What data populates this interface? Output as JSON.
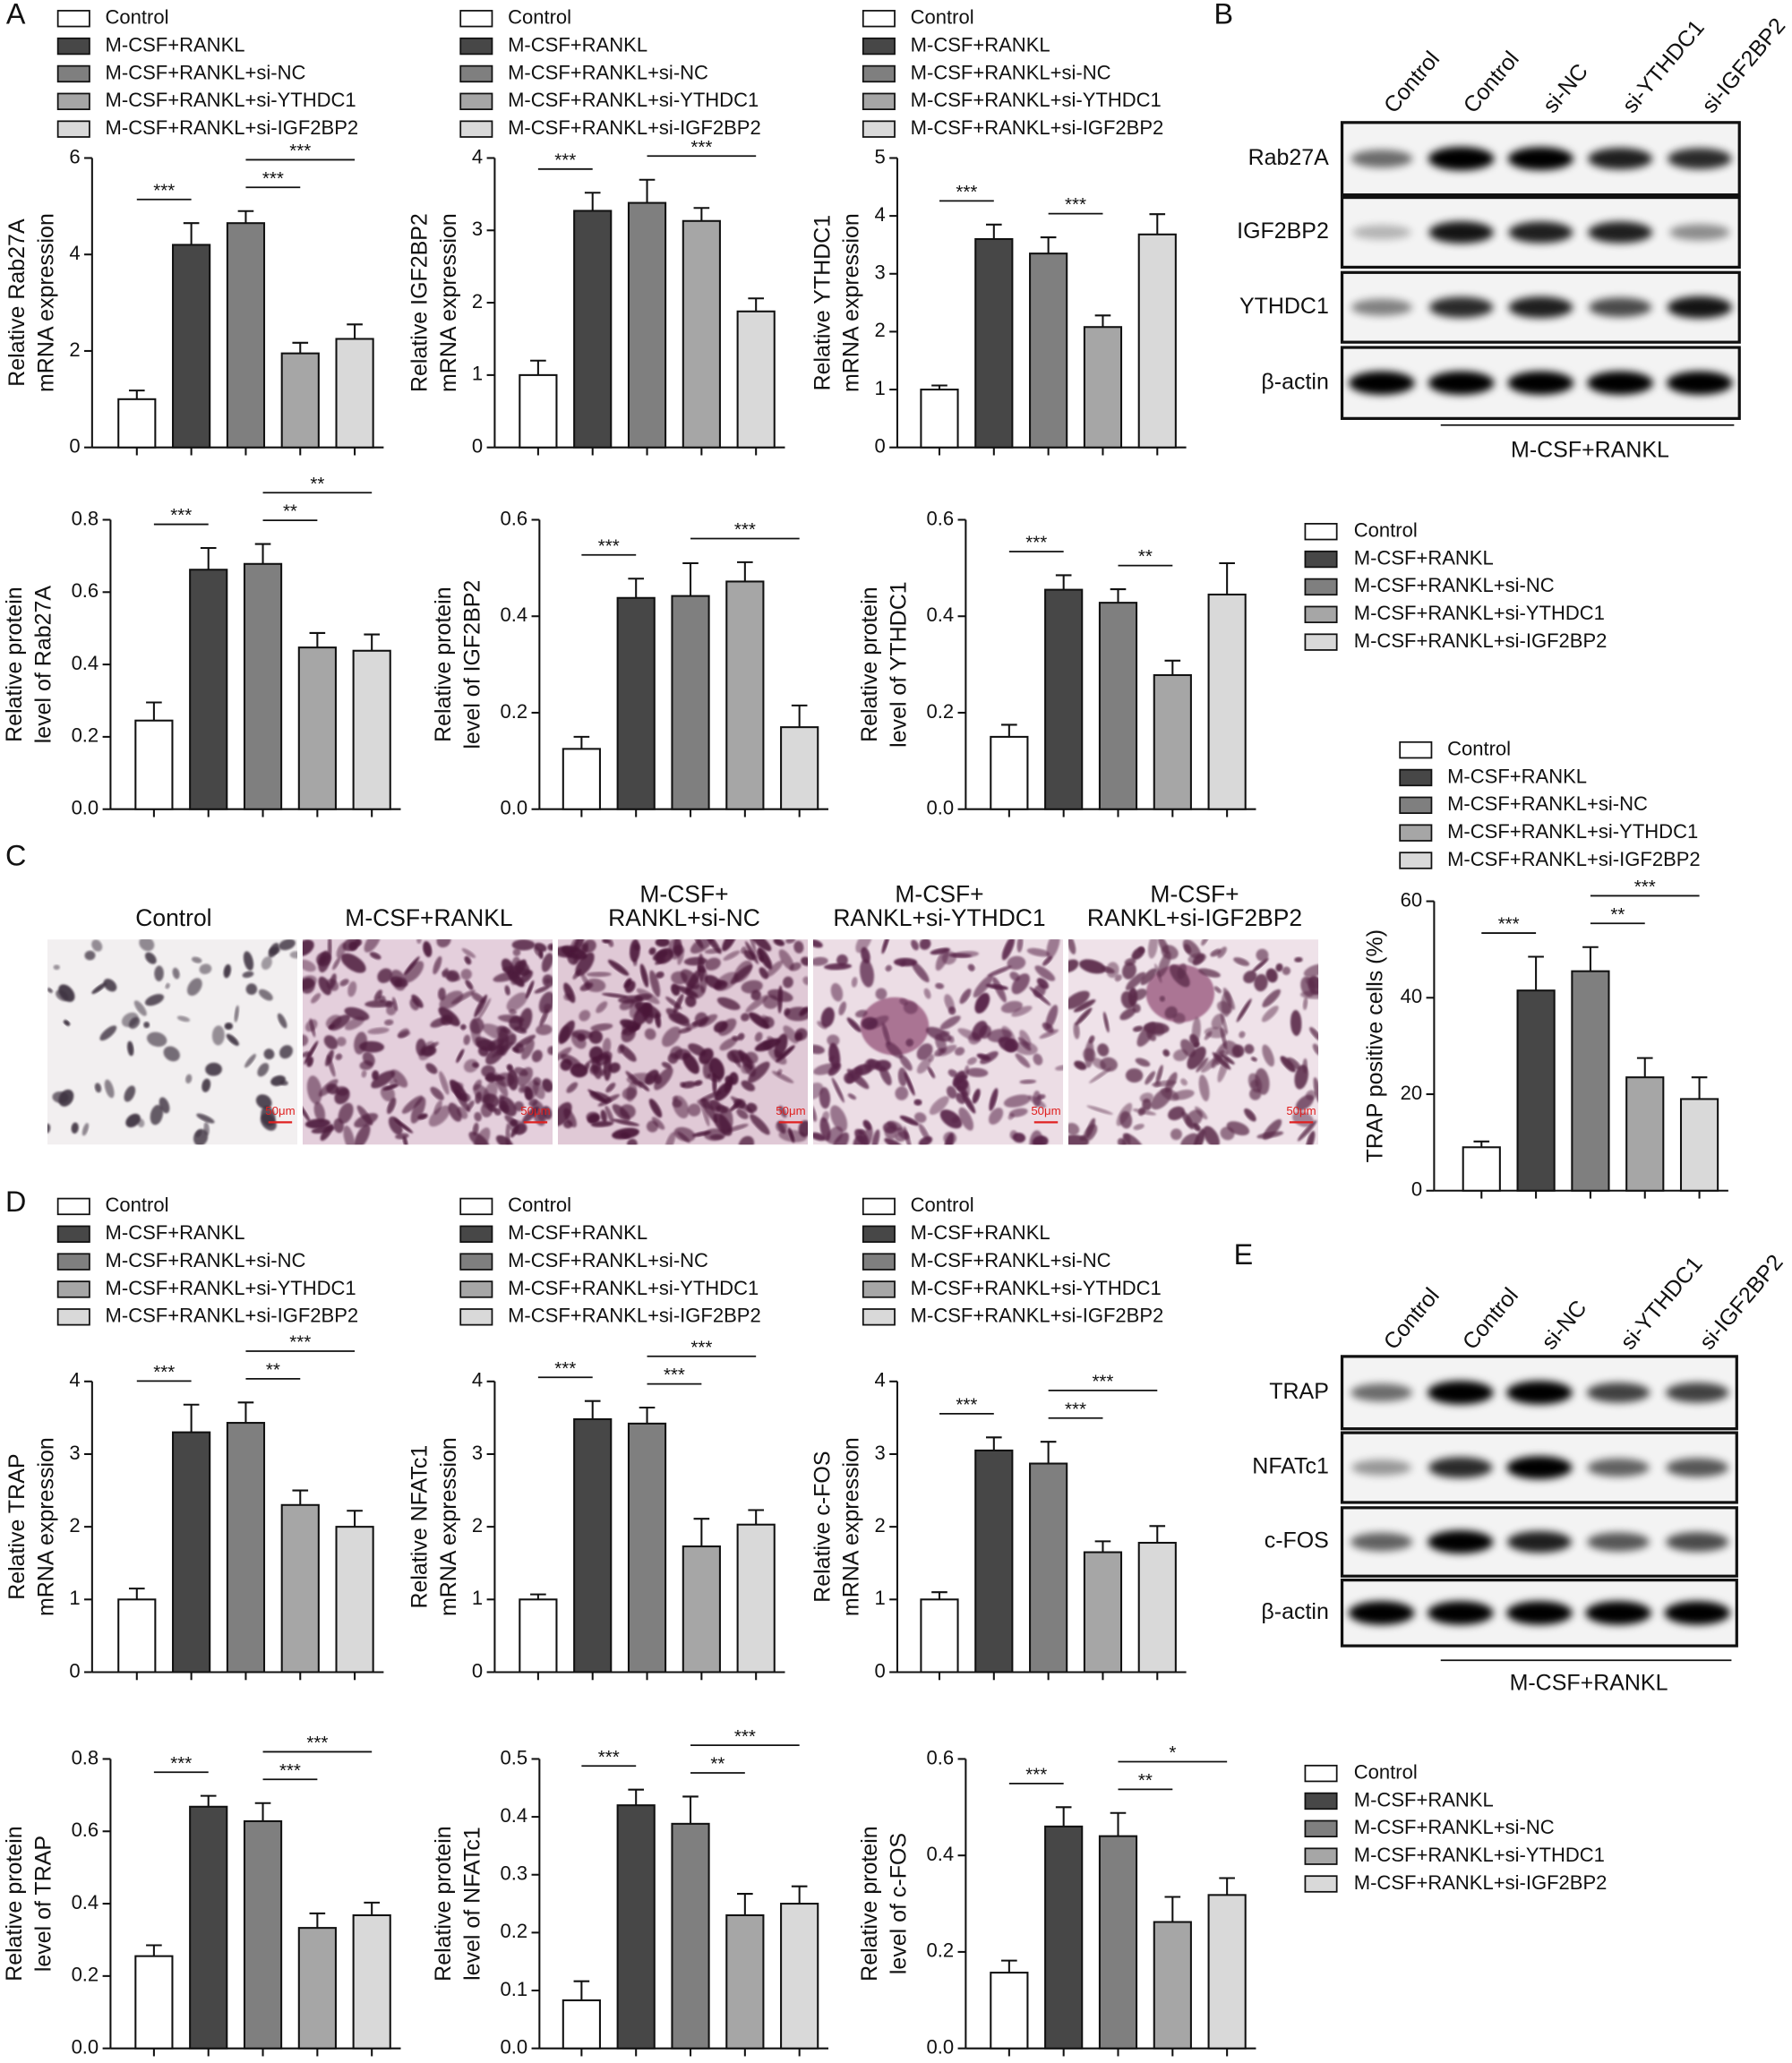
{
  "panel_labels": [
    "A",
    "B",
    "C",
    "D",
    "E"
  ],
  "chart_data": [
    {
      "type": "bar",
      "ylabel": [
        "Relative Rab27A",
        "mRNA expression"
      ],
      "categories": [
        "Control",
        "M-CSF+RANKL",
        "M-CSF+RANKL+si-NC",
        "M-CSF+RANKL+si-YTHDC1",
        "M-CSF+RANKL+si-IGF2BP2"
      ],
      "colors": [
        "#ffffff",
        "#474747",
        "#7f7f7f",
        "#a6a6a6",
        "#d9d9d9"
      ],
      "values": [
        1.0,
        4.2,
        4.65,
        1.95,
        2.25
      ],
      "errors": [
        0.18,
        0.45,
        0.25,
        0.22,
        0.3
      ],
      "ylim": [
        0,
        6
      ],
      "yticks": [
        0,
        2,
        4,
        6
      ],
      "legend": "top",
      "significance": [
        {
          "from": 0,
          "to": 1,
          "label": "***"
        },
        {
          "from": 2,
          "to": 3,
          "label": "***"
        },
        {
          "from": 2,
          "to": 4,
          "label": "***"
        }
      ]
    },
    {
      "type": "bar",
      "ylabel": [
        "Relative IGF2BP2",
        "mRNA expression"
      ],
      "categories": [
        "Control",
        "M-CSF+RANKL",
        "M-CSF+RANKL+si-NC",
        "M-CSF+RANKL+si-YTHDC1",
        "M-CSF+RANKL+si-IGF2BP2"
      ],
      "colors": [
        "#ffffff",
        "#474747",
        "#7f7f7f",
        "#a6a6a6",
        "#d9d9d9"
      ],
      "values": [
        1.0,
        3.27,
        3.38,
        3.13,
        1.88
      ],
      "errors": [
        0.2,
        0.25,
        0.32,
        0.18,
        0.18
      ],
      "ylim": [
        0,
        4
      ],
      "yticks": [
        0,
        1,
        2,
        3,
        4
      ],
      "legend": "top",
      "significance": [
        {
          "from": 0,
          "to": 1,
          "label": "***"
        },
        {
          "from": 2,
          "to": 4,
          "label": "***"
        }
      ]
    },
    {
      "type": "bar",
      "ylabel": [
        "Relative YTHDC1",
        "mRNA expression"
      ],
      "categories": [
        "Control",
        "M-CSF+RANKL",
        "M-CSF+RANKL+si-NC",
        "M-CSF+RANKL+si-YTHDC1",
        "M-CSF+RANKL+si-IGF2BP2"
      ],
      "colors": [
        "#ffffff",
        "#474747",
        "#7f7f7f",
        "#a6a6a6",
        "#d9d9d9"
      ],
      "values": [
        1.0,
        3.6,
        3.35,
        2.08,
        3.68
      ],
      "errors": [
        0.07,
        0.25,
        0.28,
        0.2,
        0.35
      ],
      "ylim": [
        0,
        5
      ],
      "yticks": [
        0,
        1,
        2,
        3,
        4,
        5
      ],
      "legend": "top",
      "significance": [
        {
          "from": 0,
          "to": 1,
          "label": "***"
        },
        {
          "from": 2,
          "to": 3,
          "label": "***"
        }
      ]
    },
    {
      "type": "bar",
      "ylabel": [
        "Relative protein",
        "level of Rab27A"
      ],
      "categories": [
        "Control",
        "M-CSF+RANKL",
        "M-CSF+RANKL+si-NC",
        "M-CSF+RANKL+si-YTHDC1",
        "M-CSF+RANKL+si-IGF2BP2"
      ],
      "colors": [
        "#ffffff",
        "#474747",
        "#7f7f7f",
        "#a6a6a6",
        "#d9d9d9"
      ],
      "values": [
        0.245,
        0.662,
        0.678,
        0.447,
        0.438
      ],
      "errors": [
        0.05,
        0.06,
        0.055,
        0.04,
        0.045
      ],
      "ylim": [
        0,
        0.8
      ],
      "yticks": [
        {
          "value": 0,
          "label": "0.0"
        },
        0.2,
        0.4,
        0.6,
        0.8
      ],
      "legend": false,
      "significance": [
        {
          "from": 0,
          "to": 1,
          "label": "***"
        },
        {
          "from": 2,
          "to": 3,
          "label": "**"
        },
        {
          "from": 2,
          "to": 4,
          "label": "**"
        }
      ]
    },
    {
      "type": "bar",
      "ylabel": [
        "Relative protein",
        "level of IGF2BP2"
      ],
      "categories": [
        "Control",
        "M-CSF+RANKL",
        "M-CSF+RANKL+si-NC",
        "M-CSF+RANKL+si-YTHDC1",
        "M-CSF+RANKL+si-IGF2BP2"
      ],
      "colors": [
        "#ffffff",
        "#474747",
        "#7f7f7f",
        "#a6a6a6",
        "#d9d9d9"
      ],
      "values": [
        0.125,
        0.438,
        0.442,
        0.472,
        0.17
      ],
      "errors": [
        0.025,
        0.04,
        0.068,
        0.04,
        0.045
      ],
      "ylim": [
        0,
        0.6
      ],
      "yticks": [
        {
          "value": 0,
          "label": "0.0"
        },
        0.2,
        0.4,
        0.6
      ],
      "legend": false,
      "significance": [
        {
          "from": 0,
          "to": 1,
          "label": "***"
        },
        {
          "from": 2,
          "to": 4,
          "label": "***"
        }
      ]
    },
    {
      "type": "bar",
      "ylabel": [
        "Relative protein",
        "level of YTHDC1"
      ],
      "categories": [
        "Control",
        "M-CSF+RANKL",
        "M-CSF+RANKL+si-NC",
        "M-CSF+RANKL+si-YTHDC1",
        "M-CSF+RANKL+si-IGF2BP2"
      ],
      "colors": [
        "#ffffff",
        "#474747",
        "#7f7f7f",
        "#a6a6a6",
        "#d9d9d9"
      ],
      "values": [
        0.15,
        0.455,
        0.428,
        0.278,
        0.445
      ],
      "errors": [
        0.025,
        0.03,
        0.028,
        0.03,
        0.065
      ],
      "ylim": [
        0,
        0.6
      ],
      "yticks": [
        {
          "value": 0,
          "label": "0.0"
        },
        0.2,
        0.4,
        0.6
      ],
      "legend": "right",
      "significance": [
        {
          "from": 0,
          "to": 1,
          "label": "***"
        },
        {
          "from": 2,
          "to": 3,
          "label": "**"
        }
      ]
    },
    {
      "type": "bar",
      "ylabel": [
        "TRAP positive cells (%)"
      ],
      "categories": [
        "Control",
        "M-CSF+RANKL",
        "M-CSF+RANKL+si-NC",
        "M-CSF+RANKL+si-YTHDC1",
        "M-CSF+RANKL+si-IGF2BP2"
      ],
      "colors": [
        "#ffffff",
        "#474747",
        "#7f7f7f",
        "#a6a6a6",
        "#d9d9d9"
      ],
      "values": [
        9,
        41.5,
        45.5,
        23.5,
        19
      ],
      "errors": [
        1.2,
        7,
        5,
        4,
        4.5
      ],
      "ylim": [
        0,
        60
      ],
      "yticks": [
        0,
        20,
        40,
        60
      ],
      "legend": "top",
      "significance": [
        {
          "from": 0,
          "to": 1,
          "label": "***"
        },
        {
          "from": 2,
          "to": 3,
          "label": "**"
        },
        {
          "from": 2,
          "to": 4,
          "label": "***"
        }
      ]
    },
    {
      "type": "bar",
      "ylabel": [
        "Relative TRAP",
        "mRNA expression"
      ],
      "categories": [
        "Control",
        "M-CSF+RANKL",
        "M-CSF+RANKL+si-NC",
        "M-CSF+RANKL+si-YTHDC1",
        "M-CSF+RANKL+si-IGF2BP2"
      ],
      "colors": [
        "#ffffff",
        "#474747",
        "#7f7f7f",
        "#a6a6a6",
        "#d9d9d9"
      ],
      "values": [
        1.0,
        3.3,
        3.43,
        2.3,
        2.0
      ],
      "errors": [
        0.15,
        0.38,
        0.28,
        0.2,
        0.22
      ],
      "ylim": [
        0,
        4
      ],
      "yticks": [
        0,
        1,
        2,
        3,
        4
      ],
      "legend": "top",
      "significance": [
        {
          "from": 0,
          "to": 1,
          "label": "***"
        },
        {
          "from": 2,
          "to": 3,
          "label": "**"
        },
        {
          "from": 2,
          "to": 4,
          "label": "***"
        }
      ]
    },
    {
      "type": "bar",
      "ylabel": [
        "Relative NFATc1",
        "mRNA expression"
      ],
      "categories": [
        "Control",
        "M-CSF+RANKL",
        "M-CSF+RANKL+si-NC",
        "M-CSF+RANKL+si-YTHDC1",
        "M-CSF+RANKL+si-IGF2BP2"
      ],
      "colors": [
        "#ffffff",
        "#474747",
        "#7f7f7f",
        "#a6a6a6",
        "#d9d9d9"
      ],
      "values": [
        1.0,
        3.48,
        3.42,
        1.73,
        2.03
      ],
      "errors": [
        0.07,
        0.25,
        0.22,
        0.38,
        0.2
      ],
      "ylim": [
        0,
        4
      ],
      "yticks": [
        0,
        1,
        2,
        3,
        4
      ],
      "legend": "top",
      "significance": [
        {
          "from": 0,
          "to": 1,
          "label": "***"
        },
        {
          "from": 2,
          "to": 3,
          "label": "***"
        },
        {
          "from": 2,
          "to": 4,
          "label": "***"
        }
      ]
    },
    {
      "type": "bar",
      "ylabel": [
        "Relative c-FOS",
        "mRNA expression"
      ],
      "categories": [
        "Control",
        "M-CSF+RANKL",
        "M-CSF+RANKL+si-NC",
        "M-CSF+RANKL+si-YTHDC1",
        "M-CSF+RANKL+si-IGF2BP2"
      ],
      "colors": [
        "#ffffff",
        "#474747",
        "#7f7f7f",
        "#a6a6a6",
        "#d9d9d9"
      ],
      "values": [
        1.0,
        3.05,
        2.87,
        1.65,
        1.78
      ],
      "errors": [
        0.1,
        0.18,
        0.3,
        0.15,
        0.23
      ],
      "ylim": [
        0,
        4
      ],
      "yticks": [
        0,
        1,
        2,
        3,
        4
      ],
      "legend": "top",
      "significance": [
        {
          "from": 0,
          "to": 1,
          "label": "***"
        },
        {
          "from": 2,
          "to": 3,
          "label": "***"
        },
        {
          "from": 2,
          "to": 4,
          "label": "***"
        }
      ]
    },
    {
      "type": "bar",
      "ylabel": [
        "Relative protein",
        "level of TRAP"
      ],
      "categories": [
        "Control",
        "M-CSF+RANKL",
        "M-CSF+RANKL+si-NC",
        "M-CSF+RANKL+si-YTHDC1",
        "M-CSF+RANKL+si-IGF2BP2"
      ],
      "colors": [
        "#ffffff",
        "#474747",
        "#7f7f7f",
        "#a6a6a6",
        "#d9d9d9"
      ],
      "values": [
        0.255,
        0.668,
        0.628,
        0.333,
        0.368
      ],
      "errors": [
        0.03,
        0.03,
        0.05,
        0.04,
        0.035
      ],
      "ylim": [
        0,
        0.8
      ],
      "yticks": [
        {
          "value": 0,
          "label": "0.0"
        },
        0.2,
        0.4,
        0.6,
        0.8
      ],
      "legend": false,
      "significance": [
        {
          "from": 0,
          "to": 1,
          "label": "***"
        },
        {
          "from": 2,
          "to": 3,
          "label": "***"
        },
        {
          "from": 2,
          "to": 4,
          "label": "***"
        }
      ]
    },
    {
      "type": "bar",
      "ylabel": [
        "Relative protein",
        "level of NFATc1"
      ],
      "categories": [
        "Control",
        "M-CSF+RANKL",
        "M-CSF+RANKL+si-NC",
        "M-CSF+RANKL+si-YTHDC1",
        "M-CSF+RANKL+si-IGF2BP2"
      ],
      "colors": [
        "#ffffff",
        "#474747",
        "#7f7f7f",
        "#a6a6a6",
        "#d9d9d9"
      ],
      "values": [
        0.083,
        0.42,
        0.388,
        0.23,
        0.25
      ],
      "errors": [
        0.033,
        0.027,
        0.047,
        0.037,
        0.03
      ],
      "ylim": [
        0,
        0.5
      ],
      "yticks": [
        {
          "value": 0,
          "label": "0.0"
        },
        0.1,
        0.2,
        0.3,
        0.4,
        0.5
      ],
      "legend": false,
      "significance": [
        {
          "from": 0,
          "to": 1,
          "label": "***"
        },
        {
          "from": 2,
          "to": 3,
          "label": "**"
        },
        {
          "from": 2,
          "to": 4,
          "label": "***"
        }
      ]
    },
    {
      "type": "bar",
      "ylabel": [
        "Relative protein",
        "level of c-FOS"
      ],
      "categories": [
        "Control",
        "M-CSF+RANKL",
        "M-CSF+RANKL+si-NC",
        "M-CSF+RANKL+si-YTHDC1",
        "M-CSF+RANKL+si-IGF2BP2"
      ],
      "colors": [
        "#ffffff",
        "#474747",
        "#7f7f7f",
        "#a6a6a6",
        "#d9d9d9"
      ],
      "values": [
        0.157,
        0.46,
        0.44,
        0.262,
        0.318
      ],
      "errors": [
        0.025,
        0.04,
        0.048,
        0.052,
        0.035
      ],
      "ylim": [
        0,
        0.6
      ],
      "yticks": [
        {
          "value": 0,
          "label": "0.0"
        },
        0.2,
        0.4,
        0.6
      ],
      "legend": "right",
      "significance": [
        {
          "from": 0,
          "to": 1,
          "label": "***"
        },
        {
          "from": 2,
          "to": 3,
          "label": "**"
        },
        {
          "from": 2,
          "to": 4,
          "label": "*"
        }
      ]
    }
  ],
  "blot_b": {
    "lanes": [
      "Control",
      "Control",
      "si-NC",
      "si-YTHDC1",
      "si-IGF2BP2"
    ],
    "rows": [
      "Rab27A",
      "IGF2BP2",
      "YTHDC1",
      "β-actin"
    ],
    "group_label": "M-CSF+RANKL"
  },
  "blot_e": {
    "lanes": [
      "Control",
      "Control",
      "si-NC",
      "si-YTHDC1",
      "si-IGF2BP2"
    ],
    "rows": [
      "TRAP",
      "NFATc1",
      "c-FOS",
      "β-actin"
    ],
    "group_label": "M-CSF+RANKL"
  },
  "micrographs": {
    "titles": [
      [
        "Control"
      ],
      [
        "M-CSF+RANKL"
      ],
      [
        "M-CSF+",
        "RANKL+si-NC"
      ],
      [
        "M-CSF+",
        "RANKL+si-YTHDC1"
      ],
      [
        "M-CSF+",
        "RANKL+si-IGF2BP2"
      ]
    ],
    "scale_bar": "50μm"
  }
}
